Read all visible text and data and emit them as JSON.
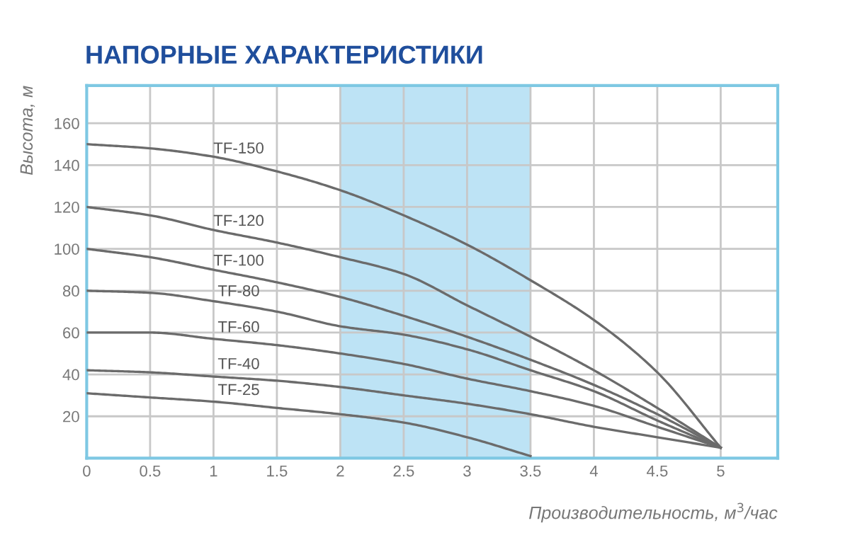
{
  "chart_data": {
    "type": "line",
    "title": "НАПОРНЫЕ ХАРАКТЕРИСТИКИ",
    "xlabel": "Производительность, м$^{3}$/час",
    "ylabel": "Высота, м",
    "xlim": [
      0,
      5.45
    ],
    "ylim": [
      0,
      178
    ],
    "xticks": [
      0,
      0.5,
      1,
      1.5,
      2,
      2.5,
      3,
      3.5,
      4,
      4.5,
      5
    ],
    "yticks": [
      20,
      40,
      60,
      80,
      100,
      120,
      140,
      160
    ],
    "grid": true,
    "marker": "none",
    "line_style": "solid",
    "series": [
      {
        "name": "TF-150",
        "color": "#6b6b6b",
        "x": [
          0,
          0.5,
          1,
          1.5,
          2,
          2.5,
          3,
          3.5,
          4,
          4.5,
          5
        ],
        "values": [
          150,
          148,
          144,
          137,
          128,
          116,
          102,
          85,
          66,
          41,
          5
        ]
      },
      {
        "name": "TF-120",
        "color": "#6b6b6b",
        "x": [
          0,
          0.5,
          1,
          1.5,
          2,
          2.5,
          3,
          3.5,
          4,
          4.5,
          5
        ],
        "values": [
          120,
          116,
          109,
          103,
          96,
          88,
          73,
          58,
          42,
          24,
          5
        ]
      },
      {
        "name": "TF-100",
        "color": "#6b6b6b",
        "x": [
          0,
          0.5,
          1,
          1.5,
          2,
          2.5,
          3,
          3.5,
          4,
          4.5,
          5
        ],
        "values": [
          100,
          96,
          90,
          84,
          77,
          68,
          58,
          47,
          35,
          21,
          5
        ]
      },
      {
        "name": "TF-80",
        "color": "#6b6b6b",
        "x": [
          0,
          0.5,
          1,
          1.5,
          2,
          2.5,
          3,
          3.5,
          4,
          4.5,
          5
        ],
        "values": [
          80,
          79,
          75,
          70,
          63,
          59,
          52,
          42,
          32,
          18,
          5
        ]
      },
      {
        "name": "TF-60",
        "color": "#6b6b6b",
        "x": [
          0,
          0.5,
          1,
          1.5,
          2,
          2.5,
          3,
          3.5,
          4,
          4.5,
          5
        ],
        "values": [
          60,
          60,
          57,
          54,
          50,
          45,
          38,
          32,
          25,
          15,
          5
        ]
      },
      {
        "name": "TF-40",
        "color": "#6b6b6b",
        "x": [
          0,
          0.5,
          1,
          1.5,
          2,
          2.5,
          3,
          3.5,
          4,
          4.5,
          5
        ],
        "values": [
          42,
          41,
          39,
          37,
          34,
          30,
          26,
          21,
          15,
          10,
          5
        ]
      },
      {
        "name": "TF-25",
        "color": "#6b6b6b",
        "x": [
          0,
          0.5,
          1,
          1.5,
          2,
          2.5,
          3,
          3.5
        ],
        "values": [
          31,
          29,
          27,
          24,
          21,
          17,
          10,
          1
        ]
      }
    ],
    "bands": [
      {
        "axis": "x",
        "from": 2,
        "to": 2.5,
        "color": "#bde3f5"
      },
      {
        "axis": "x",
        "from": 2.5,
        "to": 3.5,
        "color": "#bde3f5"
      }
    ]
  }
}
